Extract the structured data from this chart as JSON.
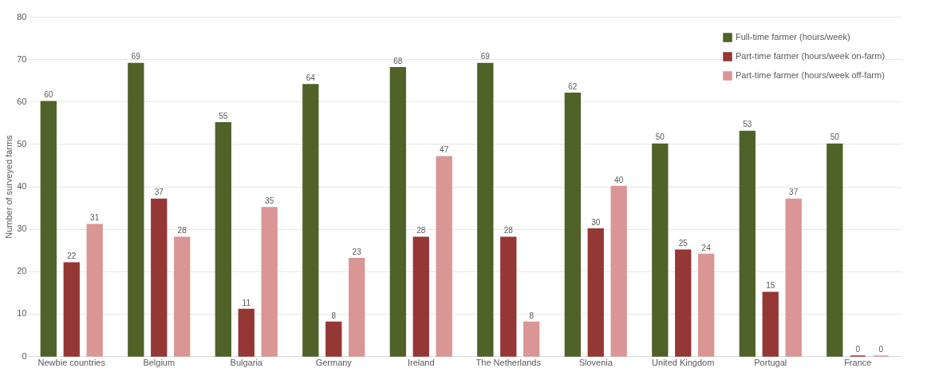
{
  "chart_data": {
    "type": "bar",
    "ylabel": "Number of surveyed farms",
    "categories": [
      "Newbie countries",
      "Belgium",
      "Bulgaria",
      "Germany",
      "Ireland",
      "The Netherlands",
      "Slovenia",
      "United Kingdom",
      "Portugal",
      "France"
    ],
    "series": [
      {
        "name": "Full-time farmer (hours/week)",
        "color": "#4f6228",
        "values": [
          60,
          69,
          55,
          64,
          68,
          69,
          62,
          50,
          53,
          50
        ]
      },
      {
        "name": "Part-time farmer (hours/week on-farm)",
        "color": "#953735",
        "values": [
          22,
          37,
          11,
          8,
          28,
          28,
          30,
          25,
          15,
          0
        ]
      },
      {
        "name": "Part-time farmer (hours/week off-farm)",
        "color": "#d99694",
        "values": [
          31,
          28,
          35,
          23,
          47,
          8,
          40,
          24,
          37,
          0
        ]
      }
    ],
    "ylim": [
      0,
      80
    ],
    "yticks": [
      0,
      10,
      20,
      30,
      40,
      50,
      60,
      70,
      80
    ],
    "grid": "y",
    "legend": "top right",
    "data_labels": true
  }
}
